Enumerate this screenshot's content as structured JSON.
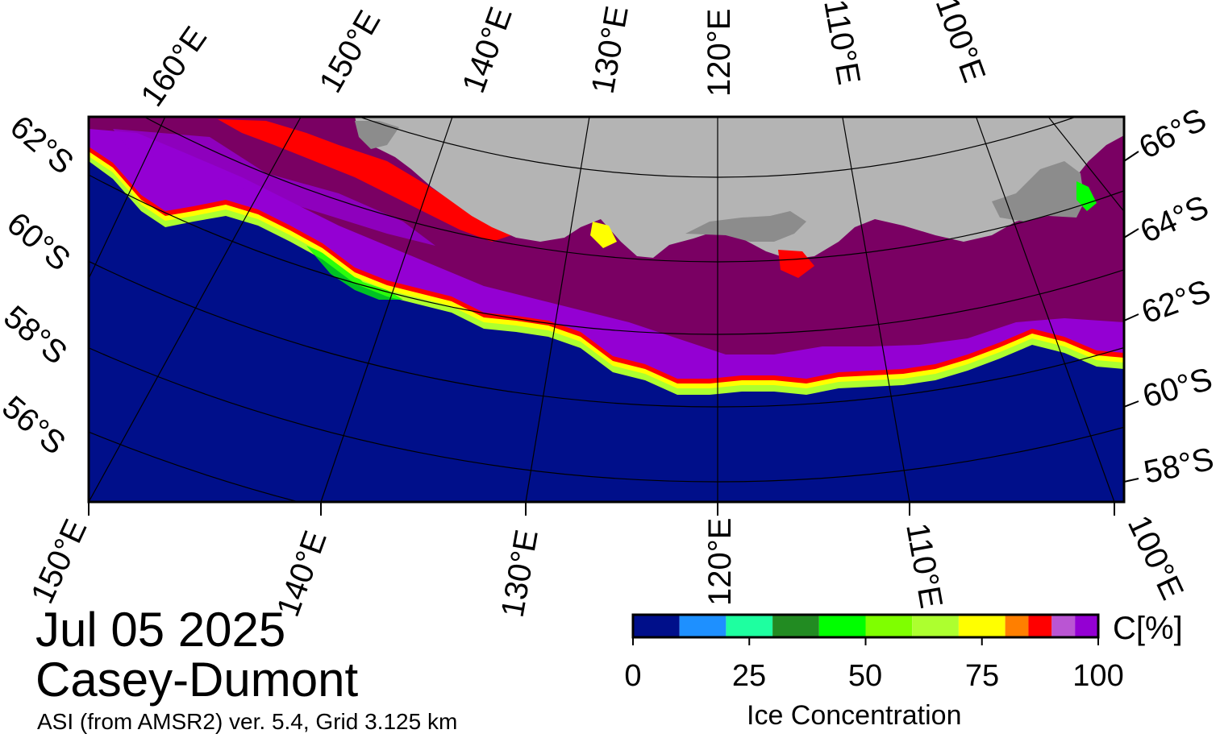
{
  "title": {
    "date": "Jul 05 2025",
    "region": "Casey-Dumont",
    "subtitle": "ASI (from AMSR2) ver. 5.4,  Grid 3.125 km"
  },
  "colors": {
    "ocean": "#000f8a",
    "land": "#b4b4b4",
    "land_shadow": "#8c8c8c",
    "ice_100": "#7a0063",
    "ice_95": "#9400d3"
  },
  "map": {
    "top_lon_labels": [
      "160°E",
      "150°E",
      "140°E",
      "130°E",
      "120°E",
      "110°E",
      "100°E"
    ],
    "bottom_lon_labels": [
      "150°E",
      "140°E",
      "130°E",
      "120°E",
      "110°E",
      "100°E"
    ],
    "left_lat_labels": [
      "62°S",
      "60°S",
      "58°S",
      "56°S"
    ],
    "right_lat_labels": [
      "66°S",
      "64°S",
      "62°S",
      "60°S",
      "58°S"
    ]
  },
  "colorbar": {
    "title": "Ice Concentration",
    "unit": "C[%]",
    "ticks": [
      "0",
      "25",
      "50",
      "75",
      "100"
    ],
    "tick_values": [
      0,
      25,
      50,
      75,
      100
    ],
    "segments": [
      {
        "from": 0,
        "to": 10,
        "color": "#000f8a"
      },
      {
        "from": 10,
        "to": 20,
        "color": "#1e90ff"
      },
      {
        "from": 20,
        "to": 30,
        "color": "#1effa0"
      },
      {
        "from": 30,
        "to": 40,
        "color": "#228b22"
      },
      {
        "from": 40,
        "to": 50,
        "color": "#00ff00"
      },
      {
        "from": 50,
        "to": 60,
        "color": "#7fff00"
      },
      {
        "from": 60,
        "to": 70,
        "color": "#adff2f"
      },
      {
        "from": 70,
        "to": 80,
        "color": "#ffff00"
      },
      {
        "from": 80,
        "to": 85,
        "color": "#ff7f00"
      },
      {
        "from": 85,
        "to": 90,
        "color": "#ff0000"
      },
      {
        "from": 90,
        "to": 95,
        "color": "#ba55d3"
      },
      {
        "from": 95,
        "to": 100,
        "color": "#9400d3"
      }
    ]
  }
}
